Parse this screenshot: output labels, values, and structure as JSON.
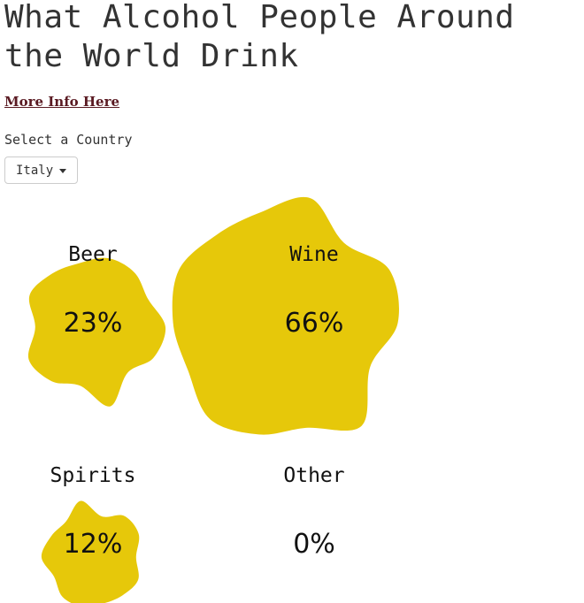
{
  "header": {
    "title": "What Alcohol People Around the World Drink",
    "more_info_label": "More Info Here"
  },
  "selector": {
    "label": "Select a Country",
    "selected": "Italy"
  },
  "colors": {
    "blob": "#e6c80a",
    "link": "#5a1a22"
  },
  "chart_data": {
    "type": "bubble",
    "categories": [
      "Beer",
      "Wine",
      "Spirits",
      "Other"
    ],
    "values": [
      23,
      66,
      12,
      0
    ],
    "labels": [
      "23%",
      "66%",
      "12%",
      "0%"
    ]
  }
}
